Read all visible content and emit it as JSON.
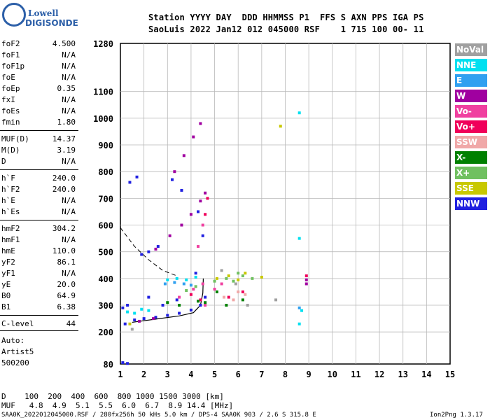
{
  "logo": {
    "line1": "Lowell",
    "line2": "DIGISONDE"
  },
  "header": {
    "line1": "Station YYYY DAY  DDD HHMMSS P1  FFS S AXN PPS IGA PS",
    "line2": "SaoLuis 2022 Jan12 012 045000 RSF    1 715 100 00- 11"
  },
  "params": [
    {
      "k": "foF2",
      "v": "4.500"
    },
    {
      "k": "foF1",
      "v": "N/A"
    },
    {
      "k": "foF1p",
      "v": "N/A"
    },
    {
      "k": "foE",
      "v": "N/A"
    },
    {
      "k": "foEp",
      "v": "0.35"
    },
    {
      "k": "fxI",
      "v": "N/A"
    },
    {
      "k": "foEs",
      "v": "N/A"
    },
    {
      "k": "fmin",
      "v": "1.80"
    },
    {
      "k": "MUF(D)",
      "v": "14.37"
    },
    {
      "k": "M(D)",
      "v": "3.19"
    },
    {
      "k": "D",
      "v": "N/A"
    },
    {
      "k": "h`F",
      "v": "240.0"
    },
    {
      "k": "h`F2",
      "v": "240.0"
    },
    {
      "k": "h`E",
      "v": "N/A"
    },
    {
      "k": "h`Es",
      "v": "N/A"
    },
    {
      "k": "hmF2",
      "v": "304.2"
    },
    {
      "k": "hmF1",
      "v": "N/A"
    },
    {
      "k": "hmE",
      "v": "110.0"
    },
    {
      "k": "yF2",
      "v": "86.1"
    },
    {
      "k": "yF1",
      "v": "N/A"
    },
    {
      "k": "yE",
      "v": "20.0"
    },
    {
      "k": "B0",
      "v": "64.9"
    },
    {
      "k": "B1",
      "v": "6.38"
    },
    {
      "k": "C-level",
      "v": "44"
    }
  ],
  "auto": [
    "Auto:",
    "Artist5",
    "500200"
  ],
  "legend": [
    {
      "label": "NoVal",
      "color": "#a0a0a0"
    },
    {
      "label": "NNE",
      "color": "#00e0f0"
    },
    {
      "label": "E",
      "color": "#30a0f0"
    },
    {
      "label": "W",
      "color": "#a000a0"
    },
    {
      "label": "Vo-",
      "color": "#f040a0"
    },
    {
      "label": "Vo+",
      "color": "#f0005a"
    },
    {
      "label": "SSW",
      "color": "#f0a8a8"
    },
    {
      "label": "X-",
      "color": "#008000"
    },
    {
      "label": "X+",
      "color": "#70c060"
    },
    {
      "label": "SSE",
      "color": "#c8c800"
    },
    {
      "label": "NNW",
      "color": "#2020e0"
    }
  ],
  "footer": {
    "d_row": "D    100  200  400  600  800 1000 1500 3000 [km]",
    "muf_row": "MUF   4.8  4.9  5.1  5.5  6.0  6.7  8.9 14.4 [MHz]",
    "file_row": "SAA0K_2022012045000.RSF / 280fx256h 50 kHs 5.0 km / DPS-4 SAA0K 903 / 2.6 S 315.8 E",
    "version": "Ion2Png 1.3.17"
  },
  "chart_data": {
    "type": "scatter",
    "title": "",
    "xlabel": "",
    "ylabel": "",
    "xlim": [
      1,
      15
    ],
    "ylim": [
      80,
      1280
    ],
    "x_ticks": [
      1,
      2,
      3,
      4,
      5,
      6,
      7,
      8,
      9,
      10,
      11,
      12,
      13,
      14,
      15
    ],
    "y_ticks": [
      80,
      200,
      300,
      400,
      500,
      600,
      700,
      800,
      900,
      1000,
      1100,
      1280
    ],
    "grid": true,
    "series": [
      {
        "name": "NNW",
        "color": "#2020e0",
        "points": [
          [
            1.2,
            230
          ],
          [
            1.6,
            245
          ],
          [
            2.0,
            250
          ],
          [
            2.5,
            255
          ],
          [
            3.0,
            262
          ],
          [
            3.5,
            270
          ],
          [
            4.0,
            282
          ],
          [
            4.4,
            300
          ],
          [
            4.6,
            330
          ],
          [
            2.2,
            330
          ],
          [
            2.8,
            300
          ],
          [
            3.4,
            320
          ],
          [
            4.2,
            420
          ],
          [
            4.5,
            560
          ],
          [
            4.3,
            650
          ],
          [
            3.6,
            730
          ],
          [
            3.2,
            770
          ],
          [
            2.6,
            520
          ],
          [
            2.2,
            500
          ],
          [
            1.9,
            490
          ],
          [
            1.1,
            85
          ],
          [
            1.3,
            82
          ],
          [
            1.1,
            290
          ],
          [
            1.3,
            300
          ],
          [
            1.4,
            760
          ],
          [
            1.7,
            780
          ]
        ]
      },
      {
        "name": "NNE",
        "color": "#00e0f0",
        "points": [
          [
            1.3,
            275
          ],
          [
            1.6,
            270
          ],
          [
            1.9,
            285
          ],
          [
            2.2,
            280
          ],
          [
            3.0,
            395
          ],
          [
            3.4,
            400
          ],
          [
            3.8,
            395
          ],
          [
            4.2,
            405
          ],
          [
            8.6,
            550
          ],
          [
            8.6,
            1020
          ],
          [
            8.6,
            230
          ],
          [
            8.7,
            280
          ]
        ]
      },
      {
        "name": "E",
        "color": "#30a0f0",
        "points": [
          [
            2.9,
            380
          ],
          [
            3.3,
            385
          ],
          [
            3.7,
            380
          ],
          [
            4.0,
            375
          ],
          [
            8.6,
            290
          ]
        ]
      },
      {
        "name": "W",
        "color": "#a000a0",
        "points": [
          [
            2.5,
            510
          ],
          [
            3.1,
            560
          ],
          [
            3.6,
            600
          ],
          [
            4.0,
            640
          ],
          [
            4.4,
            690
          ],
          [
            4.6,
            720
          ],
          [
            3.3,
            800
          ],
          [
            3.7,
            860
          ],
          [
            4.1,
            930
          ],
          [
            4.4,
            980
          ],
          [
            1.8,
            240
          ],
          [
            2.4,
            250
          ],
          [
            8.9,
            395
          ],
          [
            8.9,
            380
          ]
        ]
      },
      {
        "name": "Vo-",
        "color": "#f040a0",
        "points": [
          [
            3.5,
            330
          ],
          [
            4.1,
            360
          ],
          [
            4.5,
            380
          ],
          [
            5.0,
            360
          ],
          [
            5.3,
            380
          ],
          [
            4.6,
            300
          ],
          [
            4.3,
            520
          ],
          [
            4.5,
            600
          ]
        ]
      },
      {
        "name": "Vo+",
        "color": "#f0005a",
        "points": [
          [
            4.0,
            340
          ],
          [
            4.4,
            320
          ],
          [
            4.6,
            640
          ],
          [
            4.7,
            700
          ],
          [
            5.6,
            330
          ],
          [
            6.2,
            350
          ],
          [
            8.9,
            410
          ]
        ]
      },
      {
        "name": "SSW",
        "color": "#f0a8a8",
        "points": [
          [
            5.4,
            330
          ],
          [
            6.0,
            350
          ],
          [
            6.3,
            340
          ],
          [
            5.8,
            320
          ]
        ]
      },
      {
        "name": "X-",
        "color": "#008000",
        "points": [
          [
            3.0,
            310
          ],
          [
            3.5,
            300
          ],
          [
            4.3,
            315
          ],
          [
            4.6,
            310
          ],
          [
            5.1,
            350
          ],
          [
            5.5,
            300
          ],
          [
            6.2,
            320
          ]
        ]
      },
      {
        "name": "X+",
        "color": "#70c060",
        "points": [
          [
            3.8,
            355
          ],
          [
            4.2,
            370
          ],
          [
            5.0,
            390
          ],
          [
            5.5,
            400
          ],
          [
            6.2,
            410
          ],
          [
            6.6,
            400
          ],
          [
            5.8,
            390
          ],
          [
            6.0,
            420
          ]
        ]
      },
      {
        "name": "SSE",
        "color": "#c8c800",
        "points": [
          [
            5.1,
            400
          ],
          [
            5.6,
            410
          ],
          [
            6.0,
            395
          ],
          [
            6.3,
            420
          ],
          [
            7.0,
            405
          ],
          [
            7.8,
            970
          ],
          [
            1.4,
            230
          ]
        ]
      },
      {
        "name": "NoVal",
        "color": "#a0a0a0",
        "points": [
          [
            5.3,
            430
          ],
          [
            5.9,
            380
          ],
          [
            6.4,
            300
          ],
          [
            7.6,
            320
          ],
          [
            1.5,
            210
          ]
        ]
      }
    ]
  }
}
